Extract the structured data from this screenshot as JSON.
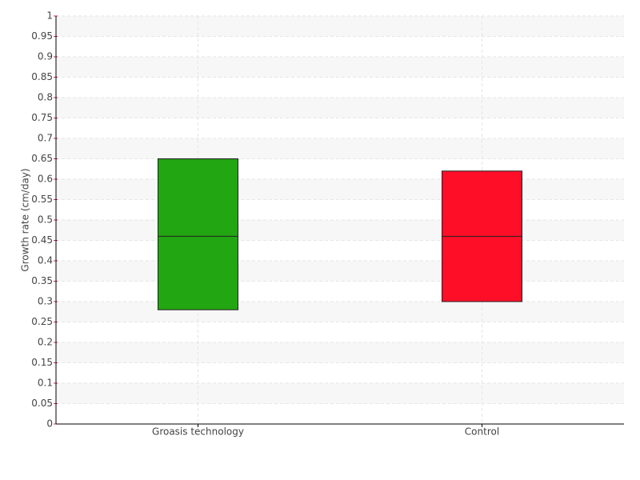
{
  "chart_data": {
    "type": "box",
    "y_label": "Growth rate (cm/day)",
    "categories": [
      "Groasis technology",
      "Control"
    ],
    "boxes": [
      {
        "q1": 0.28,
        "median": 0.46,
        "q3": 0.65,
        "color": "#22a612"
      },
      {
        "q1": 0.3,
        "median": 0.46,
        "q3": 0.62,
        "color": "#ff0e28"
      }
    ],
    "ylim": [
      0,
      1
    ],
    "yticks": [
      0,
      0.05,
      0.1,
      0.15,
      0.2,
      0.25,
      0.3,
      0.35,
      0.4,
      0.45,
      0.5,
      0.55,
      0.6,
      0.65,
      0.7,
      0.75,
      0.8,
      0.85,
      0.9,
      0.95,
      1
    ],
    "grid": true
  }
}
